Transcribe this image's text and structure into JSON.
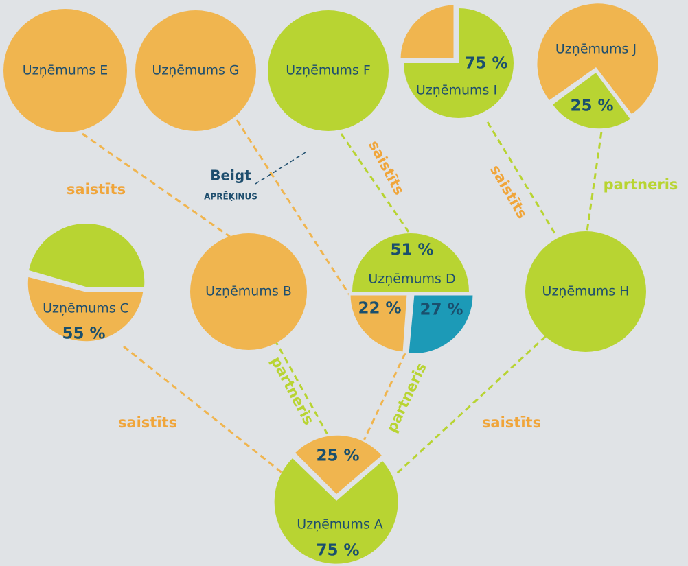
{
  "nodes": [
    {
      "label": "Uzņēmums E"
    },
    {
      "label": "Uzņēmums G"
    },
    {
      "label": "Uzņēmums F"
    },
    {
      "label": "Uzņēmums I",
      "shares": [
        "75 %"
      ]
    },
    {
      "label": "Uzņēmums J",
      "shares": [
        "25 %"
      ]
    },
    {
      "label": "Uzņēmums C",
      "shares": [
        "55 %"
      ]
    },
    {
      "label": "Uzņēmums B"
    },
    {
      "label": "Uzņēmums D",
      "shares": [
        "51 %",
        "22 %",
        "27 %"
      ]
    },
    {
      "label": "Uzņēmums H"
    },
    {
      "label": "Uzņēmums A",
      "shares": [
        "25 %",
        "75 %"
      ]
    }
  ],
  "edge_labels": [
    "saistīts",
    "saistīts",
    "saistīts",
    "partneris",
    "partneris",
    "partneris",
    "saistīts",
    "saistīts"
  ],
  "button": {
    "title": "Beigt",
    "subtitle": "APRĒĶINUS"
  }
}
